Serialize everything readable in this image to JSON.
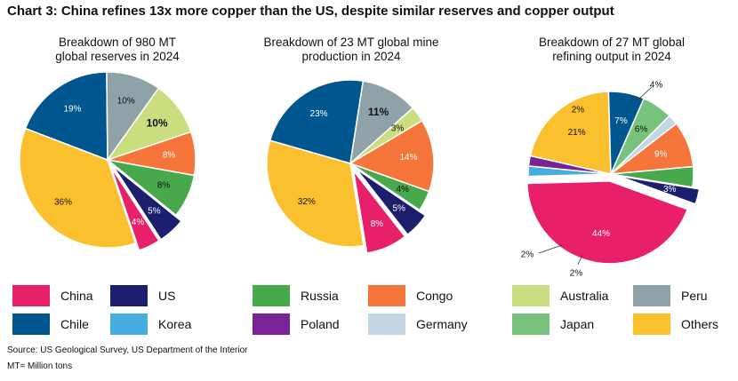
{
  "title": "Chart 3: China refines 13x more copper than the US, despite similar reserves and copper output",
  "source": "Source: US Geological Survey, US Department of the Interior",
  "note": "MT= Million tons",
  "colors": {
    "China": "#E8206A",
    "US": "#1C1F6E",
    "Russia": "#47A94B",
    "Congo": "#F5753A",
    "Australia": "#CADE7F",
    "Peru": "#8FA2A8",
    "Chile": "#00578F",
    "Korea": "#45ADE0",
    "Poland": "#7A2394",
    "Germany": "#C3D6E3",
    "Japan": "#79C27E",
    "Others": "#FBC02D"
  },
  "legend": [
    {
      "name": "China"
    },
    {
      "name": "US"
    },
    {
      "name": "Russia"
    },
    {
      "name": "Congo"
    },
    {
      "name": "Australia"
    },
    {
      "name": "Peru"
    },
    {
      "name": "Chile"
    },
    {
      "name": "Korea"
    },
    {
      "name": "Poland"
    },
    {
      "name": "Germany"
    },
    {
      "name": "Japan"
    },
    {
      "name": "Others"
    }
  ],
  "chart_data": [
    {
      "type": "pie",
      "title": "Breakdown of 980 MT global reserves in 2024",
      "title_lines": [
        "Breakdown of 980 MT",
        "global reserves in 2024"
      ],
      "slices": [
        {
          "name": "China",
          "value": 4,
          "label": "4%",
          "exploded": true
        },
        {
          "name": "Others",
          "value": 36,
          "label": "36%"
        },
        {
          "name": "Chile",
          "value": 19,
          "label": "19%"
        },
        {
          "name": "Peru",
          "value": 10,
          "label": "10%"
        },
        {
          "name": "Australia",
          "value": 10,
          "label": "10%"
        },
        {
          "name": "Congo",
          "value": 8,
          "label": "8%"
        },
        {
          "name": "Russia",
          "value": 8,
          "label": "8%"
        },
        {
          "name": "US",
          "value": 5,
          "label": "5%",
          "exploded": true
        }
      ]
    },
    {
      "type": "pie",
      "title": "Breakdown of 23 MT global mine production in 2024",
      "title_lines": [
        "Breakdown of 23 MT global mine",
        "production in 2024"
      ],
      "slices": [
        {
          "name": "China",
          "value": 8,
          "label": "8%",
          "exploded": true
        },
        {
          "name": "Others",
          "value": 32,
          "label": "32%"
        },
        {
          "name": "Chile",
          "value": 23,
          "label": "23%"
        },
        {
          "name": "Peru",
          "value": 11,
          "label": "11%"
        },
        {
          "name": "Australia",
          "value": 3,
          "label": "3%"
        },
        {
          "name": "Congo",
          "value": 14,
          "label": "14%"
        },
        {
          "name": "Russia",
          "value": 4,
          "label": "4%"
        },
        {
          "name": "US",
          "value": 5,
          "label": "5%",
          "exploded": true
        }
      ]
    },
    {
      "type": "pie",
      "title": "Breakdown of 27 MT global refining output in 2024",
      "title_lines": [
        "Breakdown of 27 MT global",
        "refining output in 2024"
      ],
      "slices": [
        {
          "name": "China",
          "value": 44,
          "label": "44%",
          "exploded": true
        },
        {
          "name": "Korea",
          "value": 2,
          "label": "2%"
        },
        {
          "name": "Poland",
          "value": 2,
          "label": "2%"
        },
        {
          "name": "Others",
          "value": 21,
          "label": "21%"
        },
        {
          "name": "Chile",
          "value": 7,
          "label": "7%"
        },
        {
          "name": "Japan",
          "value": 6,
          "label": "6%"
        },
        {
          "name": "Germany",
          "value": 2,
          "label": "2%"
        },
        {
          "name": "Congo",
          "value": 9,
          "label": "9%"
        },
        {
          "name": "Russia",
          "value": 4,
          "label": "4%"
        },
        {
          "name": "US",
          "value": 3,
          "label": "3%",
          "exploded": true
        }
      ]
    }
  ]
}
